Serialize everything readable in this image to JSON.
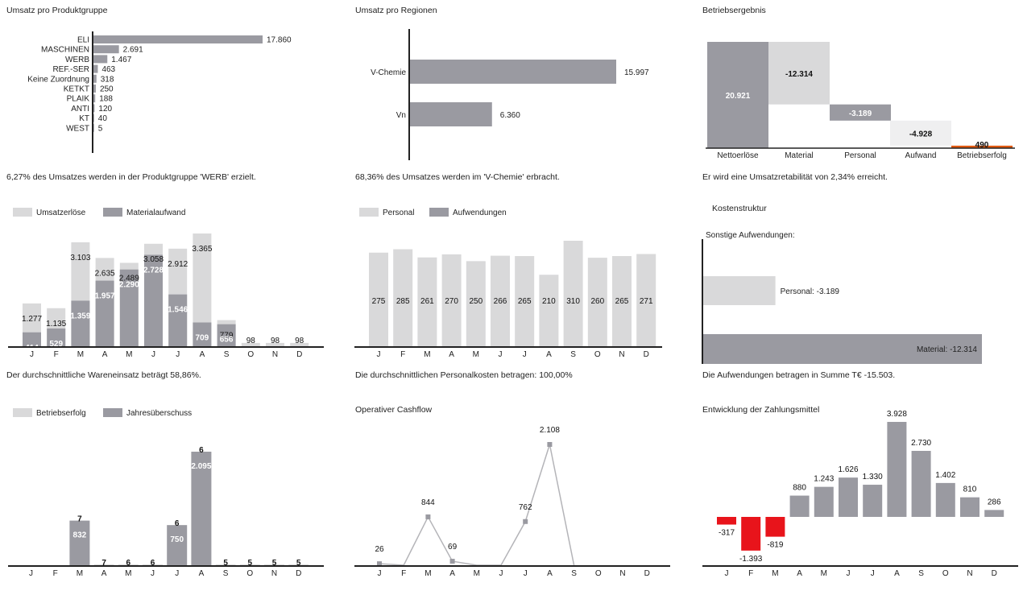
{
  "months": [
    "J",
    "F",
    "M",
    "A",
    "M",
    "J",
    "J",
    "A",
    "S",
    "O",
    "N",
    "D"
  ],
  "colors": {
    "dark": "#9a9aa1",
    "light": "#d9d9da",
    "lighter": "#efeff0",
    "red": "#e8141b",
    "orange": "#e05a12",
    "axis": "#222222"
  },
  "chart_data": [
    {
      "id": "produktgruppe",
      "type": "bar",
      "orientation": "horizontal",
      "title": "Umsatz pro Produktgruppe",
      "categories": [
        "ELI",
        "MASCHINEN",
        "WERB",
        "REF.-SER",
        "Keine Zuordnung",
        "KETKT",
        "PLAIK",
        "ANTI",
        "KT",
        "WEST"
      ],
      "values": [
        17860,
        2691,
        1467,
        463,
        318,
        250,
        188,
        120,
        40,
        5
      ],
      "value_labels": [
        "17.860",
        "2.691",
        "1.467",
        "463",
        "318",
        "250",
        "188",
        "120",
        "40",
        "5"
      ],
      "caption": "6,27% des Umsatzes werden in der Produktgruppe 'WERB' erzielt."
    },
    {
      "id": "regionen",
      "type": "bar",
      "orientation": "horizontal",
      "title": "Umsatz pro Regionen",
      "categories": [
        "V-Chemie",
        "Vn"
      ],
      "values": [
        15997,
        6360
      ],
      "value_labels": [
        "15.997",
        "6.360"
      ],
      "caption": "68,36% des Umsatzes werden im 'V-Chemie' erbracht."
    },
    {
      "id": "betriebsergebnis",
      "type": "bar",
      "variant": "waterfall",
      "title": "Betriebsergebnis",
      "categories": [
        "Nettoerlöse",
        "Material",
        "Personal",
        "Aufwand",
        "Betriebserfolg"
      ],
      "values": [
        20921,
        -12314,
        -3189,
        -4928,
        490
      ],
      "value_labels": [
        "20.921",
        "-12.314",
        "-3.189",
        "-4.928",
        "490"
      ],
      "caption": "Er wird eine Umsatzretabilität von 2,34% erreicht."
    },
    {
      "id": "wareneinsatz",
      "type": "bar",
      "variant": "overlap",
      "categories": [
        "J",
        "F",
        "M",
        "A",
        "M",
        "J",
        "J",
        "A",
        "S",
        "O",
        "N",
        "D"
      ],
      "series": [
        {
          "name": "Umsatzerlöse",
          "values": [
            1277,
            1135,
            3103,
            2635,
            2489,
            3058,
            2912,
            3365,
            779,
            98,
            98,
            98
          ],
          "labels": [
            "1.277",
            "1.135",
            "3.103",
            "2.635",
            "2.489",
            "3.058",
            "2.912",
            "3.365",
            "779",
            "98",
            "98",
            "98"
          ]
        },
        {
          "name": "Materialaufwand",
          "values": [
            414,
            529,
            1359,
            1957,
            2290,
            2728,
            1546,
            709,
            656,
            0,
            0,
            0
          ],
          "labels": [
            "414",
            "529",
            "1.359",
            "1.957",
            "2.290",
            "2.728",
            "1.546",
            "709",
            "656",
            "",
            "",
            ""
          ]
        }
      ],
      "caption": "Der durchschnittliche Wareneinsatz beträgt 58,86%."
    },
    {
      "id": "personalkosten",
      "type": "bar",
      "variant": "overlap",
      "categories": [
        "J",
        "F",
        "M",
        "A",
        "M",
        "J",
        "J",
        "A",
        "S",
        "O",
        "N",
        "D"
      ],
      "series": [
        {
          "name": "Personal",
          "values": [
            275,
            285,
            261,
            270,
            250,
            266,
            265,
            210,
            310,
            260,
            265,
            271
          ],
          "labels": [
            "275",
            "285",
            "261",
            "270",
            "250",
            "266",
            "265",
            "210",
            "310",
            "260",
            "265",
            "271"
          ]
        },
        {
          "name": "Aufwendungen",
          "values": [
            0,
            0,
            0,
            0,
            0,
            0,
            0,
            0,
            0,
            0,
            0,
            0
          ]
        }
      ],
      "caption": "Die durchschnittlichen Personalkosten betragen: 100,00%"
    },
    {
      "id": "kostenstruktur",
      "type": "bar",
      "orientation": "horizontal",
      "title": "Kostenstruktur",
      "categories": [
        "Sonstige Aufwendungen:",
        "Personal: -3.189",
        "Material: -12.314"
      ],
      "values": [
        0,
        -3189,
        -12314
      ],
      "caption": "Die Aufwendungen betragen in Summe T€ -15.503."
    },
    {
      "id": "jahresueberschuss",
      "type": "bar",
      "variant": "overlap",
      "categories": [
        "J",
        "F",
        "M",
        "A",
        "M",
        "J",
        "J",
        "A",
        "S",
        "O",
        "N",
        "D"
      ],
      "series": [
        {
          "name": "Betriebserfolg",
          "values": [
            0,
            0,
            7,
            7,
            6,
            6,
            6,
            6,
            5,
            5,
            5,
            5
          ],
          "labels": [
            "",
            "",
            "7",
            "7",
            "6",
            "6",
            "6",
            "6",
            "5",
            "5",
            "5",
            "5"
          ]
        },
        {
          "name": "Jahresüberschuss",
          "values": [
            0,
            0,
            832,
            0,
            0,
            0,
            750,
            2095,
            0,
            0,
            0,
            0
          ],
          "labels": [
            "",
            "",
            "832",
            "",
            "",
            "",
            "750",
            "2.095",
            "",
            "",
            "",
            ""
          ]
        }
      ]
    },
    {
      "id": "cashflow",
      "type": "line",
      "title": "Operativer Cashflow",
      "categories": [
        "J",
        "F",
        "M",
        "A",
        "M",
        "J",
        "J",
        "A",
        "S",
        "O",
        "N",
        "D"
      ],
      "values": [
        26,
        0,
        844,
        69,
        0,
        0,
        762,
        2108,
        0,
        0,
        0,
        0
      ],
      "value_labels": [
        "26",
        "",
        "844",
        "69",
        "",
        "",
        "762",
        "2.108",
        "",
        "",
        "",
        ""
      ]
    },
    {
      "id": "zahlungsmittel",
      "type": "bar",
      "title": "Entwicklung der Zahlungsmittel",
      "categories": [
        "J",
        "F",
        "M",
        "A",
        "M",
        "J",
        "J",
        "A",
        "S",
        "O",
        "N",
        "D"
      ],
      "values": [
        -317,
        -1393,
        -819,
        880,
        1243,
        1626,
        1330,
        3928,
        2730,
        1402,
        810,
        286
      ],
      "value_labels": [
        "-317",
        "-1.393",
        "-819",
        "880",
        "1.243",
        "1.626",
        "1.330",
        "3.928",
        "2.730",
        "1.402",
        "810",
        "286"
      ]
    }
  ]
}
